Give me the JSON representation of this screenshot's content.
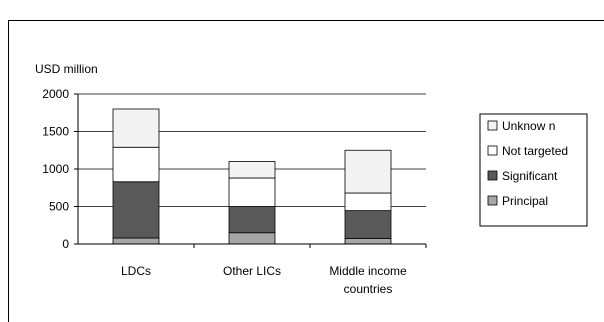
{
  "chart_data": {
    "type": "bar",
    "stacked": true,
    "ylabel": "USD million",
    "ylim": [
      0,
      2000
    ],
    "yticks": [
      "0",
      "500",
      "1000",
      "1500",
      "2000"
    ],
    "categories": [
      [
        "LDCs"
      ],
      [
        "Other LICs"
      ],
      [
        "Middle income",
        "countries"
      ]
    ],
    "series": [
      {
        "name": "Principal",
        "color": "#a6a6a6",
        "values": [
          80,
          150,
          75
        ]
      },
      {
        "name": "Significant",
        "color": "#595959",
        "values": [
          750,
          350,
          370
        ]
      },
      {
        "name": "Not targeted",
        "color": "#ffffff",
        "values": [
          460,
          380,
          235
        ]
      },
      {
        "name": "Unknow n",
        "color": "#f2f2f2",
        "values": [
          510,
          220,
          570
        ]
      }
    ],
    "legend_position": "right",
    "grid": true
  }
}
